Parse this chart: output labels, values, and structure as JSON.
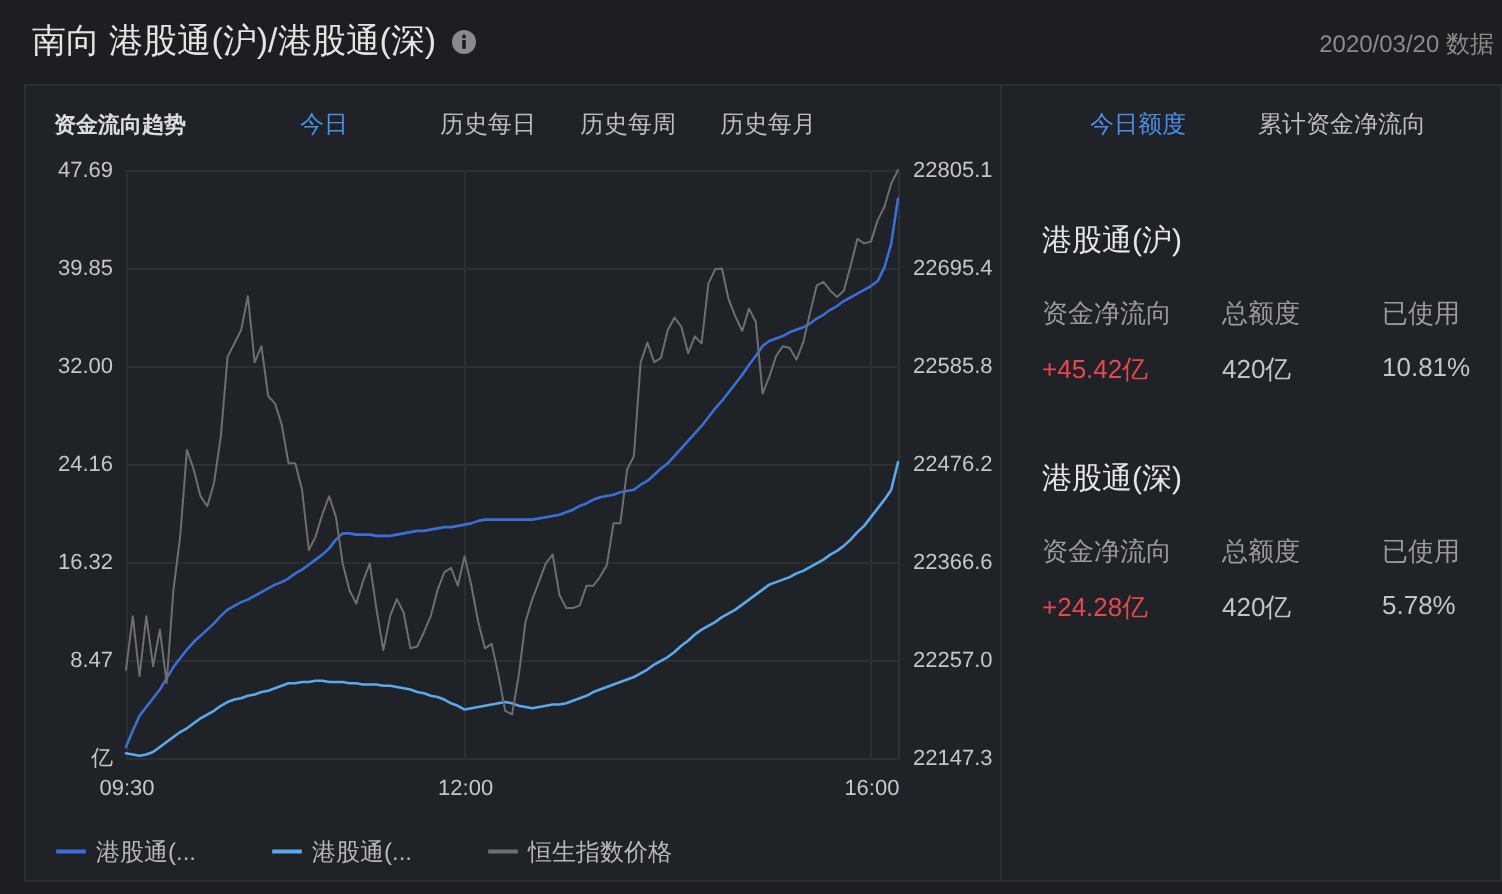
{
  "chart_data": [
    {
      "type": "line",
      "title": "南向 港股通(沪)/港股通(深)",
      "annotations": [
        "资金流向趋势",
        "今日",
        "历史每日",
        "历史每周",
        "历史每月"
      ],
      "categories": [
        "09:30",
        null,
        null,
        null,
        null,
        null,
        null,
        null,
        null,
        null,
        null,
        null,
        null,
        null,
        null,
        null,
        null,
        null,
        null,
        null,
        null,
        null,
        null,
        null,
        null,
        null,
        null,
        null,
        null,
        null,
        null,
        null,
        null,
        null,
        null,
        null,
        null,
        null,
        null,
        null,
        null,
        null,
        null,
        null,
        null,
        null,
        null,
        null,
        null,
        null,
        "12:00",
        null,
        null,
        null,
        null,
        null,
        null,
        null,
        null,
        null,
        null,
        null,
        null,
        null,
        null,
        null,
        null,
        null,
        null,
        null,
        null,
        null,
        null,
        null,
        null,
        null,
        null,
        null,
        null,
        null,
        null,
        null,
        null,
        null,
        null,
        null,
        null,
        null,
        null,
        null,
        null,
        null,
        null,
        null,
        null,
        null,
        null,
        null,
        null,
        null,
        null,
        null,
        null,
        null,
        null,
        null,
        null,
        null,
        null,
        null,
        "16:00",
        null,
        null,
        null,
        null
      ],
      "ylim": [
        0.62,
        47.69
      ],
      "yticks": [
        {
          "value": 0.62,
          "label": "亿"
        },
        8.47,
        16.32,
        24.16,
        {
          "value": 32,
          "label": "32.00"
        },
        39.85,
        47.69
      ],
      "y2lim": [
        22147.3,
        22805.1
      ],
      "y2ticks": [
        22147.3,
        {
          "value": 22257,
          "label": "22257.0"
        },
        22366.6,
        22476.2,
        22585.8,
        22695.4,
        22805.1
      ],
      "grid": true,
      "legend": "bottom left",
      "series": [
        {
          "name": "港股通(...",
          "color": "#3a6fd8",
          "values": [
            1.5,
            2.8,
            4.0,
            4.7,
            5.4,
            6.1,
            7.0,
            7.9,
            8.6,
            9.3,
            9.9,
            10.4,
            10.9,
            11.4,
            12.0,
            12.5,
            12.8,
            13.1,
            13.3,
            13.6,
            13.9,
            14.2,
            14.5,
            14.7,
            15.0,
            15.4,
            15.7,
            16.1,
            16.5,
            16.9,
            17.4,
            18.1,
            18.6,
            18.6,
            18.5,
            18.5,
            18.5,
            18.4,
            18.4,
            18.4,
            18.5,
            18.6,
            18.7,
            18.8,
            18.8,
            18.9,
            19.0,
            19.1,
            19.1,
            19.2,
            19.3,
            19.4,
            19.6,
            19.7,
            19.7,
            19.7,
            19.7,
            19.7,
            19.7,
            19.7,
            19.7,
            19.8,
            19.9,
            20.0,
            20.1,
            20.3,
            20.5,
            20.8,
            21.0,
            21.3,
            21.5,
            21.6,
            21.7,
            21.9,
            22.0,
            22.1,
            22.5,
            22.8,
            23.3,
            23.8,
            24.2,
            24.8,
            25.4,
            26.0,
            26.6,
            27.2,
            27.9,
            28.6,
            29.2,
            29.9,
            30.6,
            31.3,
            32.1,
            32.8,
            33.6,
            34.0,
            34.2,
            34.4,
            34.7,
            34.9,
            35.1,
            35.4,
            35.8,
            36.1,
            36.5,
            36.8,
            37.2,
            37.5,
            37.8,
            38.1,
            38.4,
            38.8,
            39.9,
            41.8,
            45.4
          ]
        },
        {
          "name": "港股通(...",
          "color": "#5aa9ee",
          "values": [
            1.0,
            0.9,
            0.8,
            0.9,
            1.1,
            1.5,
            1.9,
            2.3,
            2.7,
            3.0,
            3.4,
            3.8,
            4.1,
            4.4,
            4.8,
            5.1,
            5.3,
            5.4,
            5.6,
            5.7,
            5.9,
            6.0,
            6.2,
            6.4,
            6.6,
            6.6,
            6.7,
            6.7,
            6.8,
            6.8,
            6.7,
            6.7,
            6.7,
            6.6,
            6.6,
            6.5,
            6.5,
            6.5,
            6.4,
            6.4,
            6.3,
            6.2,
            6.1,
            5.9,
            5.8,
            5.6,
            5.5,
            5.3,
            5.0,
            4.8,
            4.5,
            4.6,
            4.7,
            4.8,
            4.9,
            5.0,
            5.1,
            5.0,
            4.8,
            4.7,
            4.6,
            4.7,
            4.8,
            4.9,
            4.9,
            5.0,
            5.2,
            5.4,
            5.6,
            5.9,
            6.1,
            6.3,
            6.5,
            6.7,
            6.9,
            7.1,
            7.4,
            7.7,
            8.1,
            8.4,
            8.7,
            9.1,
            9.6,
            10.0,
            10.5,
            10.9,
            11.2,
            11.5,
            11.9,
            12.2,
            12.5,
            12.9,
            13.3,
            13.7,
            14.1,
            14.5,
            14.7,
            14.9,
            15.1,
            15.4,
            15.6,
            15.9,
            16.2,
            16.5,
            16.9,
            17.2,
            17.6,
            18.1,
            18.7,
            19.2,
            19.9,
            20.6,
            21.3,
            22.1,
            24.3
          ]
        },
        {
          "name": "恒生指数价格",
          "color": "#6e6e6e",
          "axis": "y2",
          "values": [
            22246,
            22306,
            22239,
            22306,
            22250,
            22291,
            22231,
            22335,
            22395,
            22492,
            22470,
            22440,
            22429,
            22455,
            22507,
            22596,
            22611,
            22626,
            22664,
            22590,
            22608,
            22552,
            22544,
            22520,
            22477,
            22477,
            22447,
            22380,
            22395,
            22420,
            22440,
            22417,
            22365,
            22335,
            22320,
            22345,
            22365,
            22313,
            22268,
            22306,
            22325,
            22310,
            22270,
            22272,
            22288,
            22306,
            22335,
            22355,
            22360,
            22340,
            22373,
            22340,
            22300,
            22270,
            22275,
            22240,
            22200,
            22196,
            22240,
            22300,
            22325,
            22345,
            22365,
            22375,
            22330,
            22315,
            22315,
            22318,
            22340,
            22340,
            22350,
            22363,
            22410,
            22410,
            22470,
            22485,
            22590,
            22612,
            22590,
            22595,
            22626,
            22640,
            22630,
            22600,
            22619,
            22611,
            22678,
            22694,
            22695,
            22660,
            22641,
            22625,
            22650,
            22635,
            22555,
            22574,
            22597,
            22608,
            22606,
            22593,
            22612,
            22645,
            22676,
            22680,
            22670,
            22663,
            22670,
            22698,
            22728,
            22723,
            22725,
            22749,
            22764,
            22790,
            22805
          ]
        }
      ]
    },
    {
      "type": "other",
      "subtitle": "2020/03/20 数据",
      "annotations": [
        "今日额度",
        "累计资金净流向",
        "港股通(沪)",
        "资金净流向",
        "总额度",
        "已使用",
        "+45.42亿",
        "420亿",
        "10.81%",
        "港股通(深)",
        "资金净流向",
        "总额度",
        "已使用",
        "+24.28亿",
        "420亿",
        "5.78%"
      ]
    }
  ]
}
